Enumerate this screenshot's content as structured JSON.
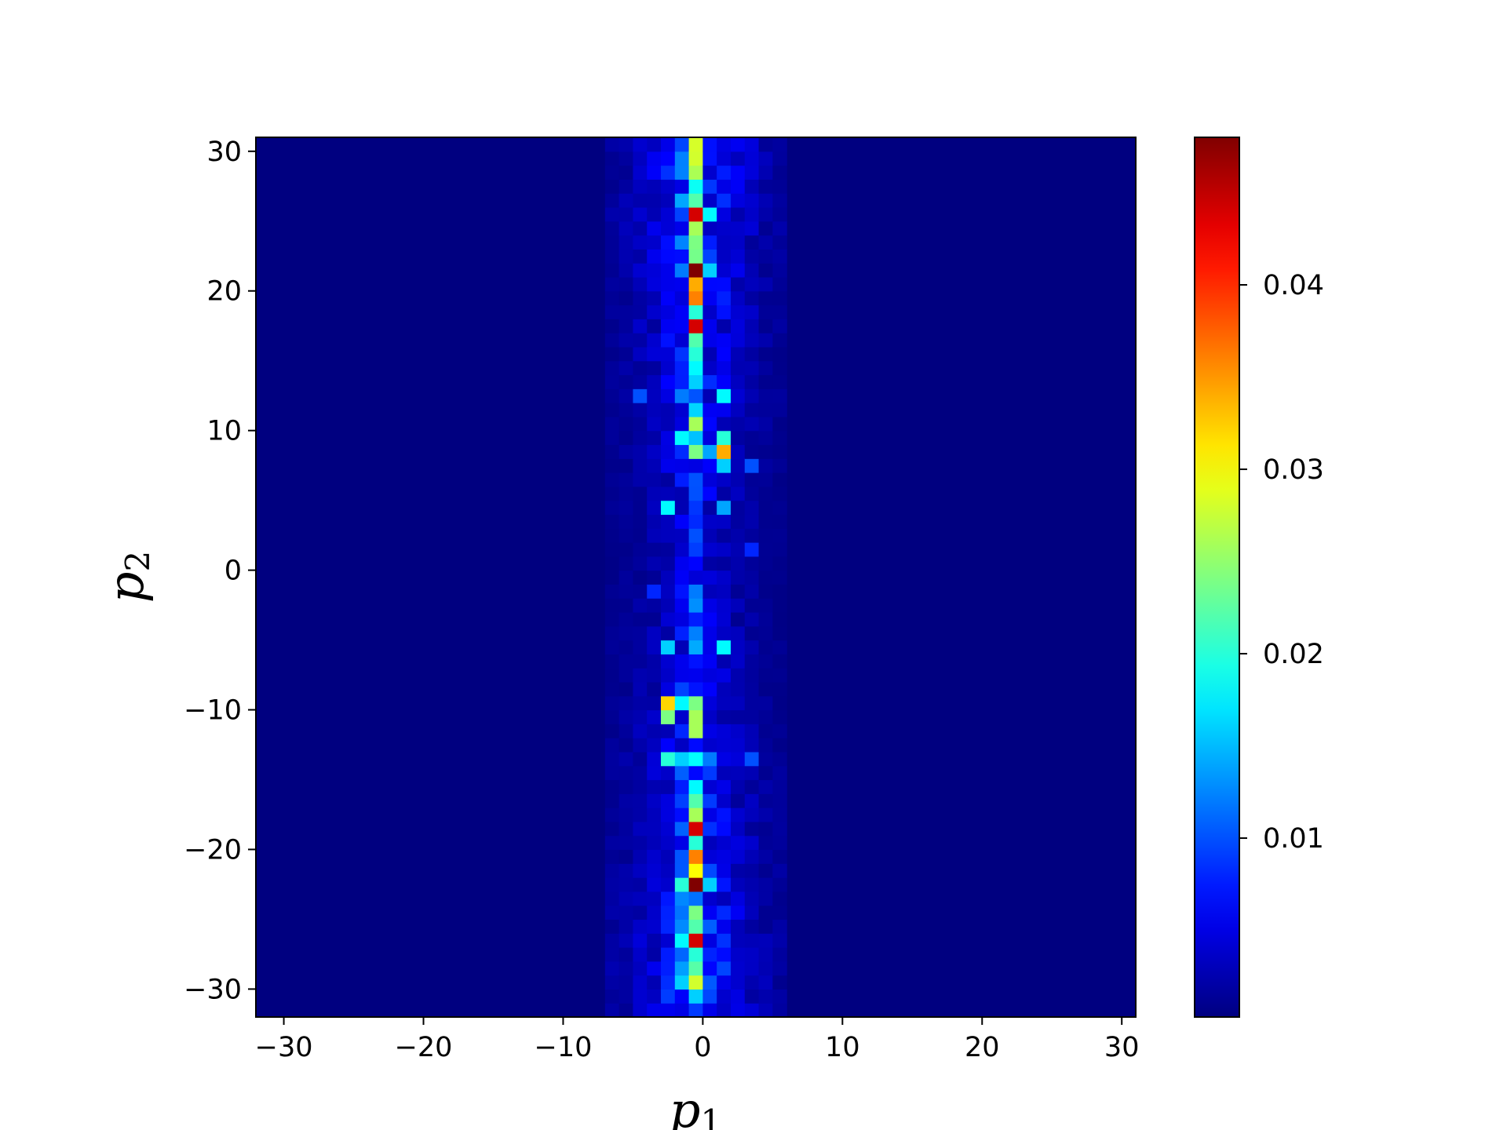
{
  "chart_data": {
    "type": "heatmap",
    "title": "",
    "xlabel": {
      "base": "p",
      "sub": "1"
    },
    "ylabel": {
      "base": "p",
      "sub": "2"
    },
    "xlim": [
      -32,
      31
    ],
    "ylim": [
      -32,
      31
    ],
    "bin_width": 1,
    "x_ticks": [
      -30,
      -20,
      -10,
      0,
      10,
      20,
      30
    ],
    "y_ticks": [
      -30,
      -20,
      -10,
      0,
      10,
      20,
      30
    ],
    "x_tick_labels": [
      "−30",
      "−20",
      "−10",
      "0",
      "10",
      "20",
      "30"
    ],
    "y_tick_labels": [
      "−30",
      "−20",
      "−10",
      "0",
      "10",
      "20",
      "30"
    ],
    "colormap": "jet",
    "vmin": 0.0003,
    "vmax": 0.048,
    "colorbar_ticks": [
      0.01,
      0.02,
      0.03,
      0.04
    ],
    "colorbar_tick_labels": [
      "0.01",
      "0.02",
      "0.03",
      "0.04"
    ],
    "background_value": 0.0003,
    "column_profile": [
      {
        "p1": -7,
        "value": 0.0015
      },
      {
        "p1": -6,
        "value": 0.002
      },
      {
        "p1": -5,
        "value": 0.003
      },
      {
        "p1": -4,
        "value": 0.004
      },
      {
        "p1": -3,
        "value": 0.006
      },
      {
        "p1": -2,
        "value": 0.01
      },
      {
        "p1": -1,
        "value": 0.018
      },
      {
        "p1": 0,
        "value": 0.008
      },
      {
        "p1": 1,
        "value": 0.006
      },
      {
        "p1": 2,
        "value": 0.004
      },
      {
        "p1": 3,
        "value": 0.003
      },
      {
        "p1": 4,
        "value": 0.002
      },
      {
        "p1": 5,
        "value": 0.0015
      }
    ],
    "hotspots": [
      {
        "p1": -1,
        "p2": 29,
        "value": 0.028
      },
      {
        "p1": -1,
        "p2": 26,
        "value": 0.022
      },
      {
        "p1": -1,
        "p2": 25,
        "value": 0.044
      },
      {
        "p1": 0,
        "p2": 25,
        "value": 0.018
      },
      {
        "p1": -1,
        "p2": 24,
        "value": 0.026
      },
      {
        "p1": -1,
        "p2": 23,
        "value": 0.024
      },
      {
        "p1": -1,
        "p2": 21,
        "value": 0.048
      },
      {
        "p1": 0,
        "p2": 21,
        "value": 0.016
      },
      {
        "p1": -2,
        "p2": 21,
        "value": 0.012
      },
      {
        "p1": -1,
        "p2": 20,
        "value": 0.034
      },
      {
        "p1": -1,
        "p2": 19,
        "value": 0.036
      },
      {
        "p1": -1,
        "p2": 18,
        "value": 0.02
      },
      {
        "p1": -1,
        "p2": 17,
        "value": 0.044
      },
      {
        "p1": -1,
        "p2": 16,
        "value": 0.022
      },
      {
        "p1": -1,
        "p2": 15,
        "value": 0.02
      },
      {
        "p1": -1,
        "p2": 14,
        "value": 0.018
      },
      {
        "p1": -1,
        "p2": 13,
        "value": 0.016
      },
      {
        "p1": 1,
        "p2": 12,
        "value": 0.018
      },
      {
        "p1": -2,
        "p2": 12,
        "value": 0.012
      },
      {
        "p1": -5,
        "p2": 12,
        "value": 0.01
      },
      {
        "p1": -1,
        "p2": 10,
        "value": 0.026
      },
      {
        "p1": -2,
        "p2": 9,
        "value": 0.018
      },
      {
        "p1": 1,
        "p2": 9,
        "value": 0.02
      },
      {
        "p1": -1,
        "p2": 8,
        "value": 0.024
      },
      {
        "p1": 1,
        "p2": 8,
        "value": 0.034
      },
      {
        "p1": 0,
        "p2": 8,
        "value": 0.014
      },
      {
        "p1": 1,
        "p2": 7,
        "value": 0.016
      },
      {
        "p1": 3,
        "p2": 7,
        "value": 0.01
      },
      {
        "p1": -3,
        "p2": 4,
        "value": 0.018
      },
      {
        "p1": 1,
        "p2": 4,
        "value": 0.014
      },
      {
        "p1": -1,
        "p2": 5,
        "value": 0.01
      },
      {
        "p1": -1,
        "p2": 2,
        "value": 0.01
      },
      {
        "p1": 3,
        "p2": 1,
        "value": 0.008
      },
      {
        "p1": -1,
        "p2": -2,
        "value": 0.012
      },
      {
        "p1": -4,
        "p2": -2,
        "value": 0.008
      },
      {
        "p1": -3,
        "p2": -6,
        "value": 0.016
      },
      {
        "p1": 1,
        "p2": -6,
        "value": 0.018
      },
      {
        "p1": -3,
        "p2": -10,
        "value": 0.032
      },
      {
        "p1": -2,
        "p2": -10,
        "value": 0.018
      },
      {
        "p1": -1,
        "p2": -10,
        "value": 0.024
      },
      {
        "p1": -3,
        "p2": -11,
        "value": 0.024
      },
      {
        "p1": -1,
        "p2": -11,
        "value": 0.026
      },
      {
        "p1": -1,
        "p2": -12,
        "value": 0.026
      },
      {
        "p1": -3,
        "p2": -14,
        "value": 0.02
      },
      {
        "p1": -2,
        "p2": -14,
        "value": 0.016
      },
      {
        "p1": 0,
        "p2": -14,
        "value": 0.012
      },
      {
        "p1": 3,
        "p2": -14,
        "value": 0.01
      },
      {
        "p1": -1,
        "p2": -16,
        "value": 0.018
      },
      {
        "p1": -1,
        "p2": -17,
        "value": 0.022
      },
      {
        "p1": -1,
        "p2": -18,
        "value": 0.026
      },
      {
        "p1": -1,
        "p2": -19,
        "value": 0.044
      },
      {
        "p1": -1,
        "p2": -20,
        "value": 0.02
      },
      {
        "p1": -1,
        "p2": -21,
        "value": 0.036
      },
      {
        "p1": -1,
        "p2": -22,
        "value": 0.03
      },
      {
        "p1": -1,
        "p2": -23,
        "value": 0.048
      },
      {
        "p1": -2,
        "p2": -23,
        "value": 0.02
      },
      {
        "p1": 0,
        "p2": -23,
        "value": 0.016
      },
      {
        "p1": -1,
        "p2": -25,
        "value": 0.024
      },
      {
        "p1": -1,
        "p2": -26,
        "value": 0.022
      },
      {
        "p1": -1,
        "p2": -27,
        "value": 0.044
      },
      {
        "p1": -2,
        "p2": -27,
        "value": 0.018
      },
      {
        "p1": -1,
        "p2": -28,
        "value": 0.02
      },
      {
        "p1": -1,
        "p2": -30,
        "value": 0.028
      },
      {
        "p1": -1,
        "p2": -31,
        "value": 0.016
      }
    ]
  }
}
